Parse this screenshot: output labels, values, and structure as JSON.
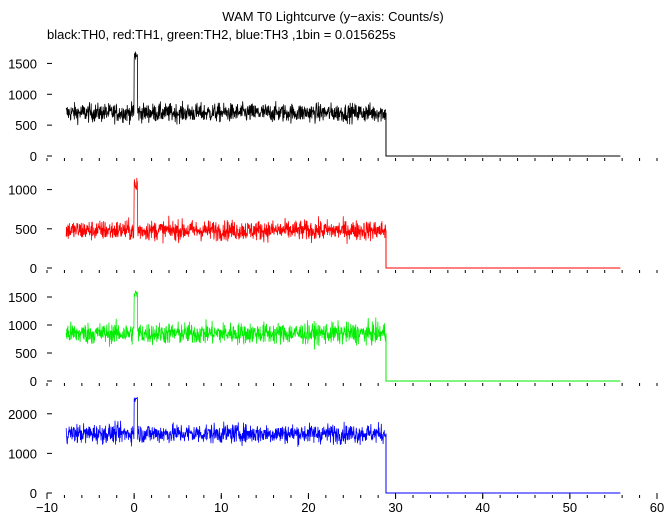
{
  "chart_data": {
    "type": "line",
    "title": "WAM T0 Lightcurve (y−axis: Counts/s)",
    "subtitle": "black:TH0, red:TH1, green:TH2, blue:TH3 ,1bin = 0.015625s",
    "xlim": [
      -10,
      60
    ],
    "x_ticks": [
      -10,
      0,
      10,
      20,
      30,
      40,
      50,
      60
    ],
    "x_tick_labels": [
      "−10",
      "0",
      "10",
      "20",
      "30",
      "40",
      "50",
      "60"
    ],
    "bin_size_s": 0.015625,
    "data_x_start": -7.8,
    "data_x_end": 28.9,
    "tail_x_end": 55.8,
    "grid": false,
    "panels": [
      {
        "name": "TH0",
        "color": "#000000",
        "ylim": [
          0,
          1750
        ],
        "y_ticks": [
          0,
          500,
          1000,
          1500
        ],
        "y_tick_labels": [
          "0",
          "500",
          "1000",
          "1500"
        ],
        "mean": 700,
        "noise_amplitude": 260,
        "spike_x": 0.2,
        "spike_peak": 1700,
        "tail_value": 0
      },
      {
        "name": "TH1",
        "color": "#ff0000",
        "ylim": [
          0,
          1250
        ],
        "y_ticks": [
          0,
          500,
          1000
        ],
        "y_tick_labels": [
          "0",
          "500",
          "1000"
        ],
        "mean": 480,
        "noise_amplitude": 220,
        "spike_x": 0.2,
        "spike_peak": 1150,
        "tail_value": 0
      },
      {
        "name": "TH2",
        "color": "#00ee00",
        "ylim": [
          0,
          1750
        ],
        "y_ticks": [
          0,
          500,
          1000,
          1500
        ],
        "y_tick_labels": [
          "0",
          "500",
          "1000",
          "1500"
        ],
        "mean": 850,
        "noise_amplitude": 330,
        "spike_x": 0.2,
        "spike_peak": 1650,
        "tail_value": 0
      },
      {
        "name": "TH3",
        "color": "#0000ff",
        "ylim": [
          0,
          2600
        ],
        "y_ticks": [
          0,
          1000,
          2000
        ],
        "y_tick_labels": [
          "0",
          "1000",
          "2000"
        ],
        "mean": 1500,
        "noise_amplitude": 420,
        "spike_x": 0.2,
        "spike_peak": 2450,
        "tail_value": 0
      }
    ]
  }
}
